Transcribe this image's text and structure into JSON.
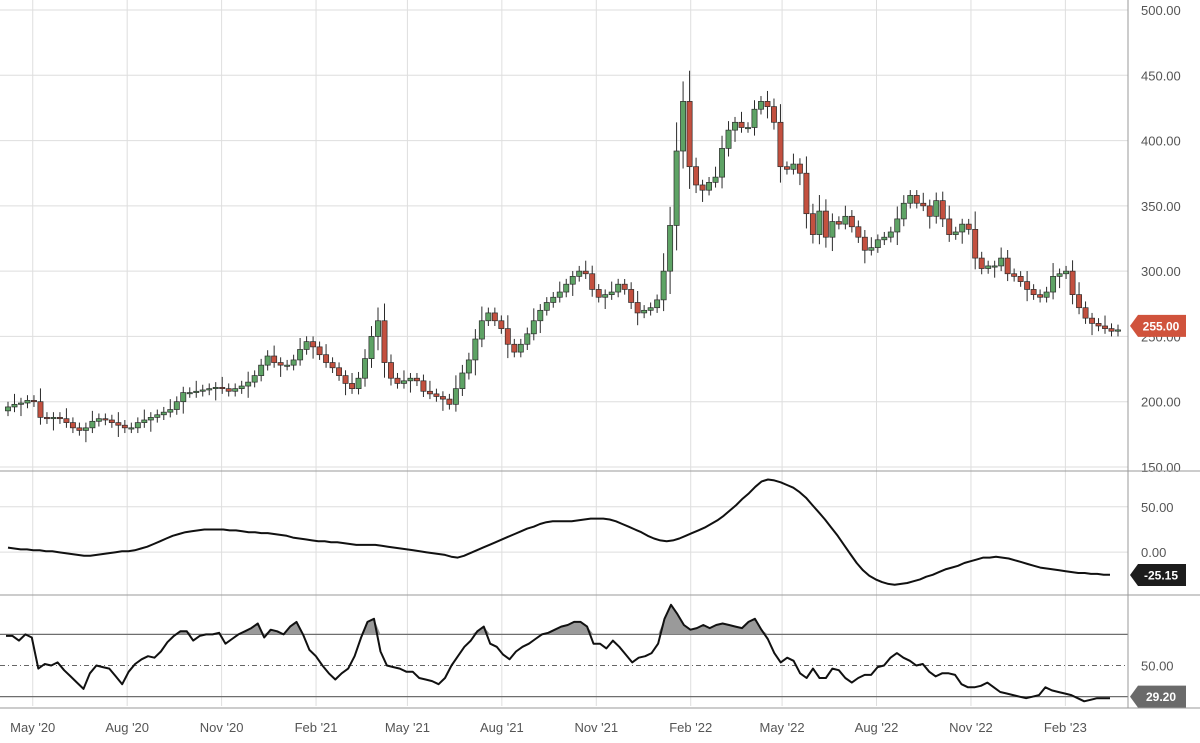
{
  "chart_data": [
    {
      "type": "candlestick",
      "panel": "price",
      "x_axis": {
        "tick_labels": [
          "May '20",
          "Aug '20",
          "Nov '20",
          "Feb '21",
          "May '21",
          "Aug '21",
          "Nov '21",
          "Feb '22",
          "May '22",
          "Aug '22",
          "Nov '22",
          "Feb '23"
        ],
        "tick_dates": [
          "2020-05-01",
          "2020-08-01",
          "2020-11-01",
          "2021-02-01",
          "2021-05-01",
          "2021-08-01",
          "2021-11-01",
          "2022-02-01",
          "2022-05-01",
          "2022-08-01",
          "2022-11-01",
          "2023-02-01"
        ],
        "range": [
          "2020-04-03",
          "2023-04-03"
        ]
      },
      "y_axis": {
        "range": [
          150,
          500
        ],
        "tick_labels": [
          "150.00",
          "200.00",
          "250.00",
          "300.00",
          "350.00",
          "400.00",
          "450.00",
          "500.00"
        ],
        "position": "right",
        "grid": true
      },
      "last_value_badge": {
        "label": "255.00",
        "value": 255,
        "color": "#d0533c"
      },
      "colors": {
        "up": "#5ea365",
        "down": "#c3503f",
        "wick": "#2b2b2b",
        "outline": "#2b2b2b"
      },
      "candles_weekly_close": [
        196,
        198,
        199,
        201,
        200,
        188,
        187,
        188,
        187,
        184,
        180,
        178,
        180,
        185,
        187,
        186,
        184,
        182,
        180,
        180,
        184,
        186,
        188,
        190,
        192,
        194,
        200,
        207,
        207,
        208,
        209,
        210,
        211,
        210,
        208,
        210,
        212,
        215,
        220,
        228,
        235,
        230,
        228,
        228,
        232,
        240,
        246,
        242,
        236,
        230,
        226,
        220,
        214,
        210,
        218,
        233,
        250,
        262,
        230,
        218,
        214,
        216,
        218,
        216,
        208,
        206,
        204,
        202,
        198,
        210,
        222,
        232,
        248,
        262,
        268,
        262,
        256,
        244,
        238,
        244,
        252,
        262,
        270,
        276,
        280,
        284,
        290,
        296,
        300,
        298,
        286,
        280,
        282,
        284,
        290,
        286,
        276,
        268,
        270,
        272,
        278,
        300,
        335,
        392,
        430,
        380,
        366,
        362,
        368,
        372,
        394,
        408,
        414,
        410,
        410,
        424,
        430,
        426,
        414,
        380,
        378,
        382,
        375,
        344,
        328,
        346,
        326,
        338,
        336,
        342,
        334,
        326,
        316,
        318,
        324,
        326,
        330,
        340,
        352,
        358,
        352,
        350,
        342,
        354,
        340,
        328,
        330,
        336,
        332,
        310,
        302,
        304,
        304,
        310,
        298,
        296,
        292,
        286,
        282,
        280,
        284,
        296,
        298,
        300,
        282,
        272,
        264,
        260,
        258,
        256,
        254,
        255
      ],
      "notes": "candles_weekly_close holds approximate weekly closing values read off the price axis (one per week); open, high and low are not labelled."
    },
    {
      "type": "line",
      "panel": "oscillator",
      "y_axis": {
        "tick_labels": [
          "50.00",
          "0.00"
        ],
        "position": "right",
        "grid": true
      },
      "series": [
        {
          "color": "#111111",
          "values": [
            5,
            4,
            3,
            3,
            2,
            2,
            1,
            1,
            0,
            -1,
            -2,
            -3,
            -4,
            -4,
            -3,
            -2,
            -1,
            0,
            1,
            1,
            2,
            4,
            6,
            9,
            12,
            15,
            18,
            20,
            22,
            23,
            24,
            25,
            25,
            25,
            25,
            24,
            24,
            23,
            22,
            22,
            21,
            21,
            20,
            19,
            18,
            16,
            15,
            14,
            13,
            12,
            12,
            11,
            11,
            10,
            9,
            8,
            8,
            8,
            8,
            7,
            6,
            5,
            4,
            3,
            2,
            1,
            0,
            -1,
            -2,
            -3,
            -5,
            -6,
            -4,
            -1,
            2,
            5,
            8,
            11,
            14,
            17,
            20,
            23,
            26,
            28,
            31,
            33,
            34,
            34,
            34,
            34,
            35,
            36,
            37,
            37,
            37,
            36,
            34,
            31,
            28,
            25,
            22,
            18,
            15,
            13,
            12,
            13,
            15,
            18,
            21,
            24,
            27,
            31,
            35,
            40,
            46,
            52,
            59,
            65,
            72,
            78,
            80,
            79,
            77,
            74,
            71,
            66,
            60,
            52,
            44,
            36,
            27,
            18,
            8,
            -2,
            -12,
            -20,
            -26,
            -30,
            -33,
            -35,
            -36,
            -35,
            -34,
            -32,
            -30,
            -27,
            -25,
            -22,
            -19,
            -17,
            -15,
            -12,
            -10,
            -8,
            -6,
            -6,
            -5,
            -6,
            -7,
            -9,
            -11,
            -13,
            -15,
            -17,
            -18,
            -19,
            -20,
            -21,
            -22,
            -23,
            -23,
            -24,
            -24,
            -25,
            -25
          ]
        }
      ],
      "last_value_badge": {
        "label": "-25.15",
        "value": -25.15,
        "color": "#1d1d1d"
      }
    },
    {
      "type": "line",
      "panel": "rsi",
      "y_axis": {
        "tick_labels": [
          "50.00"
        ],
        "position": "right",
        "upper_band": 70,
        "lower_band": 30,
        "mid_line": 50
      },
      "series": [
        {
          "color": "#111111",
          "values": [
            69,
            69,
            66,
            70,
            68,
            48,
            51,
            50,
            52,
            47,
            43,
            39,
            35,
            45,
            50,
            49,
            48,
            43,
            38,
            46,
            51,
            54,
            56,
            55,
            59,
            65,
            69,
            72,
            72,
            66,
            69,
            70,
            70,
            71,
            64,
            67,
            70,
            72,
            74,
            77,
            68,
            73,
            72,
            70,
            75,
            78,
            70,
            60,
            56,
            50,
            45,
            41,
            45,
            48,
            56,
            68,
            78,
            80,
            59,
            50,
            49,
            48,
            46,
            46,
            42,
            41,
            40,
            38,
            42,
            50,
            56,
            62,
            66,
            72,
            75,
            64,
            62,
            57,
            54,
            59,
            62,
            64,
            67,
            70,
            71,
            73,
            75,
            76,
            78,
            78,
            75,
            64,
            64,
            61,
            66,
            62,
            57,
            52,
            55,
            56,
            58,
            64,
            80,
            89,
            83,
            76,
            73,
            74,
            76,
            74,
            76,
            77,
            76,
            75,
            74,
            78,
            80,
            73,
            67,
            58,
            52,
            55,
            53,
            45,
            42,
            48,
            42,
            42,
            48,
            47,
            42,
            39,
            42,
            44,
            44,
            49,
            50,
            55,
            58,
            55,
            53,
            50,
            51,
            46,
            43,
            45,
            45,
            44,
            38,
            36,
            36,
            37,
            39,
            36,
            33,
            32,
            31,
            30,
            29,
            30,
            31,
            36,
            34,
            33,
            32,
            31,
            29,
            27,
            28,
            29,
            29,
            29
          ]
        }
      ],
      "last_value_badge": {
        "label": "29.20",
        "value": 29.2,
        "color": "#6a6a6a"
      }
    }
  ]
}
